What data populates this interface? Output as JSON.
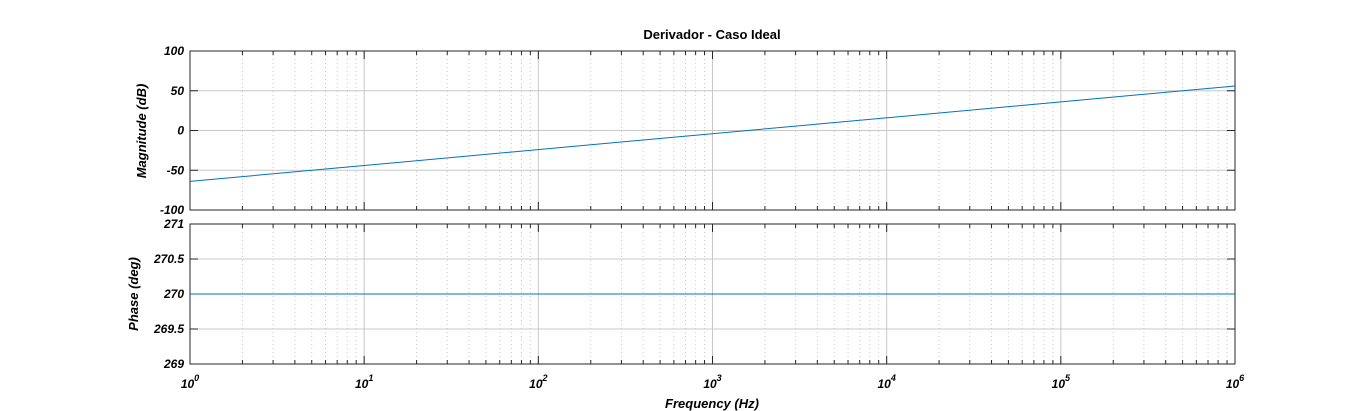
{
  "chart_data": [
    {
      "type": "line",
      "title": "Derivador - Caso Ideal",
      "xlabel": "",
      "ylabel": "Magnitude (dB)",
      "xscale": "log",
      "xlim": [
        1,
        1000000
      ],
      "ylim": [
        -100,
        100
      ],
      "yticks": [
        "-100",
        "-50",
        "0",
        "50",
        "100"
      ],
      "grid": true,
      "series": [
        {
          "x": [
            1,
            1000000
          ],
          "y": [
            -64,
            56
          ]
        }
      ]
    },
    {
      "type": "line",
      "title": "",
      "xlabel": "Frequency  (Hz)",
      "ylabel": "Phase (deg)",
      "xscale": "log",
      "xlim": [
        1,
        1000000
      ],
      "ylim": [
        269,
        271
      ],
      "yticks": [
        "269",
        "269.5",
        "270",
        "270.5",
        "271"
      ],
      "xtick_base": "10",
      "xtick_exponents": [
        "0",
        "1",
        "2",
        "3",
        "4",
        "5",
        "6"
      ],
      "grid": true,
      "series": [
        {
          "x": [
            1,
            1000000
          ],
          "y": [
            270,
            270
          ]
        }
      ]
    }
  ],
  "colors": {
    "line": "#0072BD"
  }
}
